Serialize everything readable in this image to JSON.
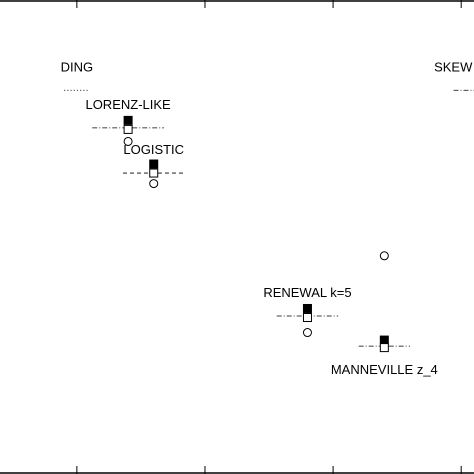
{
  "chart_data": {
    "type": "scatter",
    "title": "",
    "xlabel": "",
    "ylabel": "",
    "grid": false,
    "legend": "none",
    "series": [
      {
        "marker": "filled-square"
      },
      {
        "marker": "open-square"
      },
      {
        "marker": "open-circle"
      }
    ],
    "systems": [
      {
        "label": "DING",
        "x": 0,
        "y": 0,
        "label_side": "above",
        "range_style": "dotted"
      },
      {
        "label": "LORENZ-LIKE",
        "x": 0.2,
        "y": 0.5,
        "label_side": "above",
        "range_style": "dash-dot"
      },
      {
        "label": "LOGISTIC",
        "x": 0.3,
        "y": 1.1,
        "label_side": "above",
        "range_style": "dashed"
      },
      {
        "label": "RENEWAL k=5",
        "x": 0.9,
        "y": 3.0,
        "label_side": "above",
        "range_style": "dash-dot"
      },
      {
        "label": "MANNEVILLE z_4",
        "x": 1.2,
        "y": 3.4,
        "label_side": "below",
        "range_style": "dash-dot"
      },
      {
        "label": "SKEW PI",
        "x": 1.5,
        "y": 0,
        "label_side": "above",
        "range_style": "dash-dot"
      }
    ],
    "points": [
      {
        "system": "LORENZ-LIKE",
        "filled_square": 0.4,
        "open_square": 0.52,
        "open_circle": 0.68
      },
      {
        "system": "LOGISTIC",
        "filled_square": 0.98,
        "open_square": 1.1,
        "open_circle": 1.24
      },
      {
        "system": "RENEWAL k=5",
        "filled_square": 2.9,
        "open_square": 3.02,
        "open_circle": 3.22
      },
      {
        "system": "MANNEVILLE z_4",
        "filled_square": 3.32,
        "open_square": 3.42,
        "open_circle": 2.2
      }
    ],
    "ranges": [
      {
        "system": "DING",
        "from": -0.05,
        "to": 0.05
      },
      {
        "system": "LORENZ-LIKE",
        "from": 0.06,
        "to": 0.34
      },
      {
        "system": "LOGISTIC",
        "from": 0.18,
        "to": 0.42
      },
      {
        "system": "RENEWAL k=5",
        "from": 0.78,
        "to": 1.02
      },
      {
        "system": "MANNEVILLE z_4",
        "from": 1.1,
        "to": 1.3
      },
      {
        "system": "SKEW PI",
        "from": 1.47,
        "to": 1.56
      }
    ],
    "xlim": [
      -0.3,
      1.55
    ],
    "ylim": [
      -1.2,
      5.1
    ],
    "xticks": [
      0,
      0.5,
      1,
      1.5
    ]
  }
}
